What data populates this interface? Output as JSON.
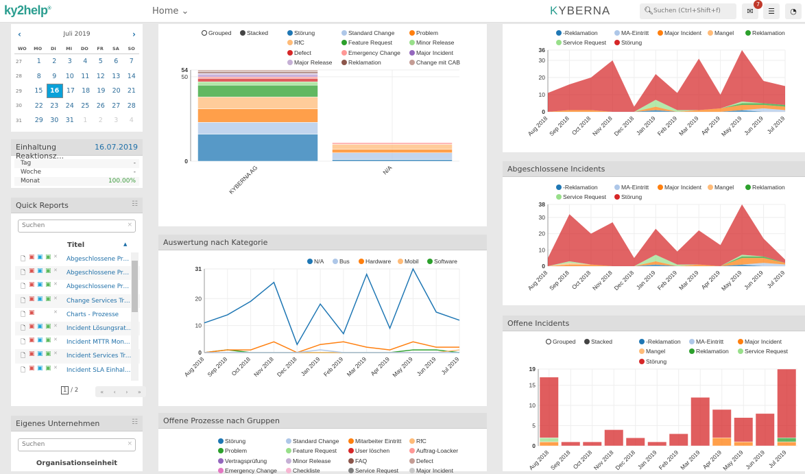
{
  "header": {
    "logo": "ky2help",
    "nav_home": "Home",
    "brand": "KYBERNA",
    "search_placeholder": "Suchen (Ctrl+Shift+f)",
    "mail_badge": "7"
  },
  "calendar": {
    "month": "Juli 2019",
    "weekdays": [
      "WO",
      "MO",
      "DI",
      "MI",
      "DO",
      "FR",
      "SA",
      "SO"
    ],
    "selected": "16",
    "weeks": [
      {
        "wk": "27",
        "days": [
          "1",
          "2",
          "3",
          "4",
          "5",
          "6",
          "7"
        ]
      },
      {
        "wk": "28",
        "days": [
          "8",
          "9",
          "10",
          "11",
          "12",
          "13",
          "14"
        ]
      },
      {
        "wk": "29",
        "days": [
          "15",
          "16",
          "17",
          "18",
          "19",
          "20",
          "21"
        ]
      },
      {
        "wk": "30",
        "days": [
          "22",
          "23",
          "24",
          "25",
          "26",
          "27",
          "28"
        ]
      },
      {
        "wk": "31",
        "days": [
          "29",
          "30",
          "31",
          "1",
          "2",
          "3",
          "4"
        ],
        "muted_from": 3
      }
    ]
  },
  "einhaltung": {
    "title": "Einhaltung Reaktionsz...",
    "date": "16.07.2019",
    "rows": [
      {
        "label": "Tag",
        "value": "-"
      },
      {
        "label": "Woche",
        "value": "-"
      },
      {
        "label": "Monat",
        "value": "100.00%"
      }
    ]
  },
  "quick_reports": {
    "title": "Quick Reports",
    "search_placeholder": "Suchen",
    "column": "Titel",
    "items": [
      {
        "title": "Abgeschlossene Proz...",
        "word_excel": true
      },
      {
        "title": "Abgeschlossene Proz...",
        "word_excel": true
      },
      {
        "title": "Abgeschlossene Proz...",
        "word_excel": true
      },
      {
        "title": "Change Services Tren...",
        "word_excel": true
      },
      {
        "title": "Charts - Prozesse",
        "word_excel": false
      },
      {
        "title": "Incident Lösungsrate ...",
        "word_excel": true
      },
      {
        "title": "Incident MTTR Monat...",
        "word_excel": true
      },
      {
        "title": "Incident Services Tre...",
        "word_excel": true
      },
      {
        "title": "Incident SLA Einhaltu...",
        "word_excel": true
      }
    ],
    "page": "1",
    "pages": "/ 2",
    "pager": [
      "«",
      "‹",
      "›",
      "»"
    ]
  },
  "eigenes": {
    "title": "Eigenes Unternehmen",
    "search_placeholder": "Suchen",
    "column": "Organisationseinheit"
  },
  "toggle": {
    "grouped": "Grouped",
    "stacked": "Stacked"
  },
  "colors": [
    "#1f77b4",
    "#aec7e8",
    "#ff7f0e",
    "#ffbb78",
    "#2ca02c",
    "#98df8a",
    "#d62728",
    "#ff9896",
    "#9467bd",
    "#c5b0d5",
    "#8c564b",
    "#c49c94",
    "#e377c2",
    "#f7b6d2",
    "#7f7f7f",
    "#c7c7c7"
  ],
  "panels": {
    "c2": "Auswertung nach Kategorie",
    "c3": "Offene Prozesse nach Gruppen",
    "r2": "Abgeschlossene Incidents",
    "r3": "Offene Incidents"
  },
  "offene_prozesse_legend": [
    "Störung",
    "Standard Change",
    "Mitarbeiter Eintritt",
    "RfC",
    "Problem",
    "Feature Request",
    "User löschen",
    "Auftrag-Loacker",
    "Vertragsprüfung",
    "Minor Release",
    "FAQ",
    "Defect",
    "Emergency Change",
    "Checkliste",
    "Service Request",
    "Major Incident"
  ],
  "chart_data": [
    {
      "id": "c1",
      "type": "bar",
      "stacked": true,
      "mode": "Stacked",
      "categories": [
        "KYBERNA AG",
        "N/A"
      ],
      "ylim": [
        0,
        54
      ],
      "yticks": [
        0,
        50,
        54
      ],
      "series": [
        {
          "name": "Störung",
          "values": [
            16,
            1
          ]
        },
        {
          "name": "Standard Change",
          "values": [
            7,
            4
          ]
        },
        {
          "name": "Problem",
          "values": [
            8,
            2
          ]
        },
        {
          "name": "RfC",
          "values": [
            7,
            3
          ]
        },
        {
          "name": "Feature Request",
          "values": [
            7,
            0
          ]
        },
        {
          "name": "Minor Release",
          "values": [
            2,
            0
          ]
        },
        {
          "name": "Defect",
          "values": [
            2,
            0
          ]
        },
        {
          "name": "Emergency Change",
          "values": [
            1,
            1
          ]
        },
        {
          "name": "Major Incident",
          "values": [
            1,
            0
          ]
        },
        {
          "name": "Major Release",
          "values": [
            1,
            0
          ]
        },
        {
          "name": "Reklamation",
          "values": [
            1,
            0
          ]
        },
        {
          "name": "Change mit CAB",
          "values": [
            1,
            0
          ]
        }
      ],
      "colors": [
        "#1f77b4",
        "#aec7e8",
        "#ff7f0e",
        "#ffbb78",
        "#2ca02c",
        "#98df8a",
        "#d62728",
        "#ff9896",
        "#9467bd",
        "#c5b0d5",
        "#8c564b",
        "#c49c94"
      ]
    },
    {
      "id": "c2",
      "type": "line",
      "categories": [
        "Aug 2018",
        "Sep 2018",
        "Oct 2018",
        "Nov 2018",
        "Dec 2018",
        "Jan 2019",
        "Feb 2019",
        "Mar 2019",
        "Apr 2019",
        "May 2019",
        "Jun 2019",
        "Jul 2019"
      ],
      "ylim": [
        0,
        31
      ],
      "yticks": [
        0,
        10,
        20,
        31
      ],
      "series": [
        {
          "name": "N/A",
          "values": [
            11,
            14,
            19,
            26,
            3,
            18,
            7,
            29,
            9,
            31,
            15,
            12
          ]
        },
        {
          "name": "Bus",
          "values": [
            0,
            0,
            0,
            0,
            0,
            1,
            0,
            0,
            0,
            0,
            0,
            0
          ]
        },
        {
          "name": "Hardware",
          "values": [
            0,
            1,
            1,
            4,
            0,
            3,
            4,
            2,
            1,
            4,
            2,
            2
          ]
        },
        {
          "name": "Mobil",
          "values": [
            0,
            0,
            0,
            0,
            0,
            0,
            0,
            0,
            0,
            0,
            0,
            1
          ]
        },
        {
          "name": "Software",
          "values": [
            0,
            1,
            0,
            0,
            0,
            0,
            0,
            0,
            0,
            1,
            1,
            0
          ]
        }
      ],
      "colors": [
        "#1f77b4",
        "#aec7e8",
        "#ff7f0e",
        "#ffbb78",
        "#2ca02c"
      ]
    },
    {
      "id": "r1",
      "type": "area",
      "stacked": true,
      "categories": [
        "Aug 2018",
        "Sep 2018",
        "Oct 2018",
        "Nov 2018",
        "Dec 2018",
        "Jan 2019",
        "Feb 2019",
        "Mar 2019",
        "Apr 2019",
        "May 2019",
        "Jun 2019",
        "Jul 2019"
      ],
      "ylim": [
        0,
        36
      ],
      "yticks": [
        0,
        10,
        20,
        30,
        36
      ],
      "series": [
        {
          "name": "-Reklamation",
          "values": [
            0,
            0,
            0,
            0,
            0,
            1,
            0,
            0,
            0,
            1,
            0,
            0
          ]
        },
        {
          "name": "MA-Eintritt",
          "values": [
            0,
            0,
            0,
            0,
            0,
            0,
            0,
            0,
            0,
            0,
            2,
            1
          ]
        },
        {
          "name": "Major Incident",
          "values": [
            0,
            1,
            1,
            0,
            0,
            2,
            0,
            1,
            2,
            3,
            2,
            2
          ]
        },
        {
          "name": "Mangel",
          "values": [
            0,
            0,
            0,
            0,
            0,
            0,
            0,
            0,
            0,
            0,
            0,
            0
          ]
        },
        {
          "name": "Reklamation",
          "values": [
            0,
            0,
            0,
            0,
            0,
            0,
            0,
            0,
            0,
            1,
            1,
            1
          ]
        },
        {
          "name": "Service Request",
          "values": [
            0,
            0,
            0,
            0,
            0,
            4,
            1,
            0,
            0,
            1,
            0,
            0
          ]
        },
        {
          "name": "Störung",
          "values": [
            11,
            15,
            19,
            30,
            3,
            15,
            10,
            30,
            8,
            30,
            13,
            11
          ]
        }
      ],
      "colors": [
        "#1f77b4",
        "#aec7e8",
        "#ff7f0e",
        "#ffbb78",
        "#2ca02c",
        "#98df8a",
        "#d62728"
      ]
    },
    {
      "id": "r2",
      "type": "area",
      "stacked": true,
      "title": "Abgeschlossene Incidents",
      "categories": [
        "Aug 2018",
        "Sep 2018",
        "Oct 2018",
        "Nov 2018",
        "Dec 2018",
        "Jan 2019",
        "Feb 2019",
        "Mar 2019",
        "Apr 2019",
        "May 2019",
        "Jun 2019",
        "Jul 2019"
      ],
      "ylim": [
        0,
        38
      ],
      "yticks": [
        0,
        10,
        20,
        30,
        38
      ],
      "series": [
        {
          "name": "-Reklamation",
          "values": [
            0,
            0,
            0,
            0,
            0,
            1,
            0,
            0,
            0,
            1,
            0,
            0
          ]
        },
        {
          "name": "MA-Eintritt",
          "values": [
            0,
            0,
            0,
            0,
            0,
            0,
            0,
            0,
            0,
            0,
            2,
            1
          ]
        },
        {
          "name": "Major Incident",
          "values": [
            0,
            1,
            1,
            0,
            0,
            2,
            0,
            1,
            0,
            4,
            3,
            1
          ]
        },
        {
          "name": "Mangel",
          "values": [
            0,
            1,
            0,
            0,
            0,
            0,
            0,
            0,
            0,
            0,
            0,
            0
          ]
        },
        {
          "name": "Reklamation",
          "values": [
            0,
            0,
            0,
            0,
            0,
            0,
            0,
            0,
            0,
            1,
            1,
            0
          ]
        },
        {
          "name": "Service Request",
          "values": [
            0,
            1,
            0,
            0,
            0,
            4,
            1,
            0,
            0,
            1,
            0,
            0
          ]
        },
        {
          "name": "Störung",
          "values": [
            5,
            29,
            19,
            27,
            5,
            16,
            8,
            21,
            13,
            31,
            11,
            2
          ]
        }
      ],
      "colors": [
        "#1f77b4",
        "#aec7e8",
        "#ff7f0e",
        "#ffbb78",
        "#2ca02c",
        "#98df8a",
        "#d62728"
      ]
    },
    {
      "id": "r3",
      "type": "bar",
      "stacked": true,
      "mode": "Stacked",
      "title": "Offene Incidents",
      "categories": [
        "Aug 2018",
        "Sep 2018",
        "Oct 2018",
        "Nov 2018",
        "Dec 2018",
        "Jan 2019",
        "Feb 2019",
        "Mar 2019",
        "Apr 2019",
        "May 2019",
        "Jun 2019",
        "Jul 2019"
      ],
      "ylim": [
        0,
        19
      ],
      "yticks": [
        0,
        5,
        10,
        15,
        19
      ],
      "series": [
        {
          "name": "-Reklamation",
          "values": [
            0,
            0,
            0,
            0,
            0,
            0,
            0,
            0,
            0,
            0,
            0,
            0
          ]
        },
        {
          "name": "MA-Eintritt",
          "values": [
            0,
            0,
            0,
            0,
            0,
            0,
            0,
            0,
            0,
            0,
            0,
            0
          ]
        },
        {
          "name": "Major Incident",
          "values": [
            1,
            0,
            0,
            0,
            0,
            0,
            0,
            0,
            2,
            1,
            0,
            1
          ]
        },
        {
          "name": "Mangel",
          "values": [
            0,
            0,
            0,
            0,
            0,
            0,
            0,
            0,
            0,
            0,
            0,
            0
          ]
        },
        {
          "name": "Reklamation",
          "values": [
            0,
            0,
            0,
            0,
            0,
            0,
            0,
            0,
            0,
            0,
            0,
            1
          ]
        },
        {
          "name": "Service Request",
          "values": [
            1,
            0,
            0,
            0,
            0,
            0,
            0,
            0,
            0,
            0,
            0,
            0
          ]
        },
        {
          "name": "Störung",
          "values": [
            15,
            1,
            1,
            4,
            2,
            1,
            3,
            12,
            7,
            6,
            8,
            17
          ]
        }
      ],
      "colors": [
        "#1f77b4",
        "#aec7e8",
        "#ff7f0e",
        "#ffbb78",
        "#2ca02c",
        "#98df8a",
        "#d62728"
      ]
    }
  ]
}
